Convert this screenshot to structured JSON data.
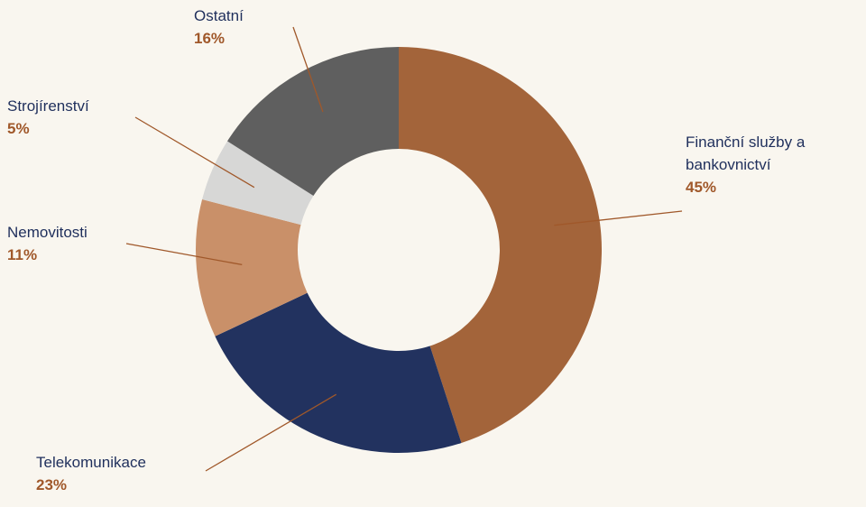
{
  "chart_data": {
    "type": "donut",
    "categories": [
      "Finanční služby a bankovnictví",
      "Telekomunikace",
      "Nemovitosti",
      "Strojírenství",
      "Ostatní"
    ],
    "values": [
      45,
      23,
      11,
      5,
      16
    ],
    "value_labels": [
      "45%",
      "23%",
      "11%",
      "5%",
      "16%"
    ],
    "colors": [
      "#a3643a",
      "#22325f",
      "#c99069",
      "#d7d7d6",
      "#5f5f5f"
    ]
  }
}
